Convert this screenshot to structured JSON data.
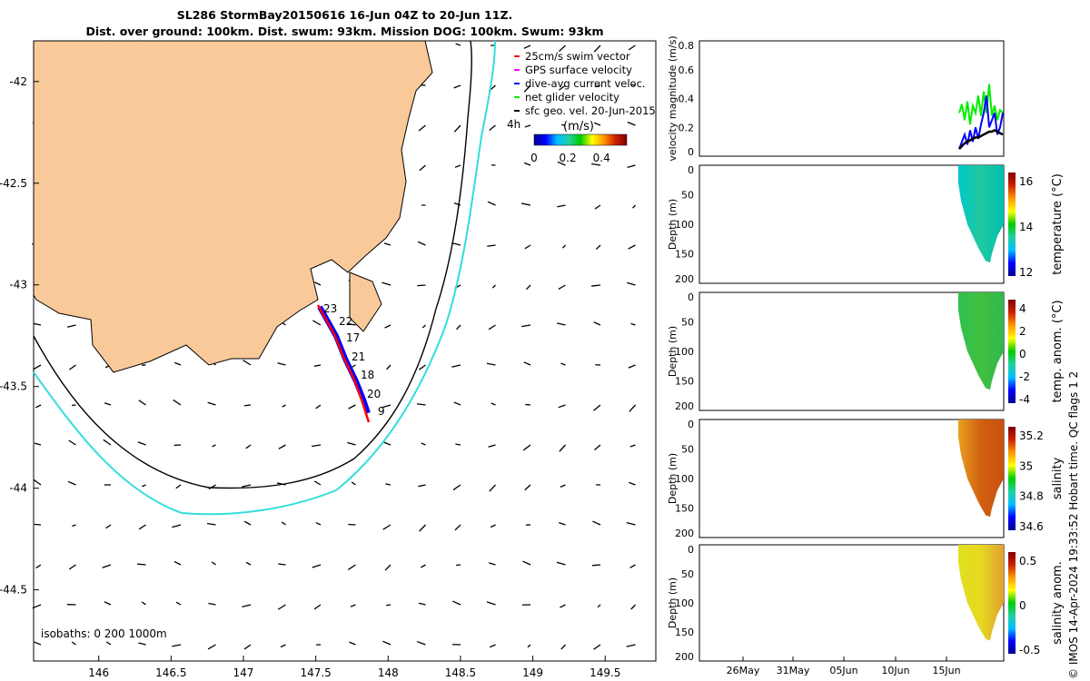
{
  "title_line1": "SL286 StormBay20150616 16-Jun 04Z to 20-Jun 11Z.",
  "title_line2": "Dist. over ground: 100km. Dist. swum: 93km. Mission DOG: 100km. Swum: 93km",
  "footer": "© IMOS 14-Apr-2024 19:33:52 Hobart time. QC flags 1  2",
  "colors": {
    "land": "#f9c999",
    "isobath200": "#000000",
    "isobath1000": "#33dddd",
    "swim": "#ff0000",
    "gps": "#ff00ff",
    "dive": "#0000ff",
    "net": "#00ee00",
    "geo": "#000000"
  },
  "chart_data": [
    {
      "type": "map",
      "name": "glider track map",
      "xlim": [
        145.55,
        149.85
      ],
      "ylim": [
        -44.85,
        -41.8
      ],
      "xticks": [
        "146",
        "146.5",
        "147",
        "147.5",
        "148",
        "148.5",
        "149",
        "149.5"
      ],
      "xtick_values": [
        146,
        146.5,
        147,
        147.5,
        148,
        148.5,
        149,
        149.5
      ],
      "yticks": [
        "-42",
        "-42.5",
        "-43",
        "-43.5",
        "-44",
        "-44.5"
      ],
      "ytick_values": [
        -42,
        -42.5,
        -43,
        -43.5,
        -44,
        -44.5
      ],
      "legend": [
        "25cm/s swim vector",
        "GPS surface velocity",
        "dive-avg current veloc.",
        "net glider velocity",
        "sfc geo. vel. 20-Jun-2015"
      ],
      "legend_placement": "top-right",
      "time_label": "4h",
      "colorbar": {
        "label": "(m/s)",
        "ticks": [
          "0",
          "0.2",
          "0.4"
        ],
        "range": [
          0,
          0.55
        ]
      },
      "isobath_label": "isobaths: 0   200  1000m",
      "day_labels": [
        "23",
        "22",
        "17",
        "21",
        "18",
        "20",
        "9"
      ]
    },
    {
      "type": "line",
      "name": "velocity magnitude",
      "ylabel": "velocity magnitude (m/s)",
      "ylim": [
        0,
        0.8
      ],
      "yticks": [
        "0",
        "0.2",
        "0.4",
        "0.6",
        "0.8"
      ],
      "series": [
        {
          "name": "net glider velocity",
          "color": "#00ee00",
          "values": [
            0.3,
            0.36,
            0.25,
            0.38,
            0.22,
            0.35,
            0.3,
            0.42,
            0.28,
            0.45,
            0.3,
            0.5,
            0.28,
            0.35,
            0.25,
            0.32,
            0.3
          ]
        },
        {
          "name": "dive-avg current",
          "color": "#0000ff",
          "values": [
            0.05,
            0.1,
            0.15,
            0.08,
            0.18,
            0.1,
            0.2,
            0.12,
            0.22,
            0.3,
            0.42,
            0.2,
            0.25,
            0.3,
            0.15,
            0.2,
            0.3
          ]
        },
        {
          "name": "sfc geo. vel.",
          "color": "#000000",
          "values": [
            0.05,
            0.07,
            0.09,
            0.1,
            0.11,
            0.12,
            0.13,
            0.13,
            0.14,
            0.15,
            0.16,
            0.17,
            0.17,
            0.18,
            0.17,
            0.16,
            0.15
          ]
        }
      ]
    },
    {
      "type": "heatmap",
      "name": "temperature",
      "ylabel": "Depth (m)",
      "clabel": "temperature (°C)",
      "ylim": [
        200,
        0
      ],
      "cticks": [
        "12",
        "14",
        "16"
      ],
      "fill": [
        "#00c8c8",
        "#20c8a0",
        "#00bfb0"
      ]
    },
    {
      "type": "heatmap",
      "name": "temp anomaly",
      "ylabel": "Depth (m)",
      "clabel": "temp. anom. (°C)",
      "ylim": [
        200,
        0
      ],
      "cticks": [
        "-4",
        "-2",
        "0",
        "2",
        "4"
      ],
      "fill": [
        "#30c050",
        "#40c040",
        "#30b850"
      ]
    },
    {
      "type": "heatmap",
      "name": "salinity",
      "ylabel": "Depth (m)",
      "clabel": "salinity",
      "ylim": [
        200,
        0
      ],
      "cticks": [
        "34.6",
        "34.8",
        "35",
        "35.2"
      ],
      "fill": [
        "#e8a020",
        "#d06010",
        "#c85010"
      ]
    },
    {
      "type": "heatmap",
      "name": "salinity anomaly",
      "ylabel": "Depth (m)",
      "clabel": "salinity anom.",
      "ylim": [
        200,
        0
      ],
      "cticks": [
        "-0.5",
        "0",
        "0.5"
      ],
      "fill": [
        "#e0e020",
        "#e8d820",
        "#e0a030"
      ]
    }
  ],
  "depth_ticks": [
    "0",
    "50",
    "100",
    "150",
    "200"
  ],
  "time_ticks": [
    "26May",
    "31May",
    "05Jun",
    "10Jun",
    "15Jun"
  ]
}
